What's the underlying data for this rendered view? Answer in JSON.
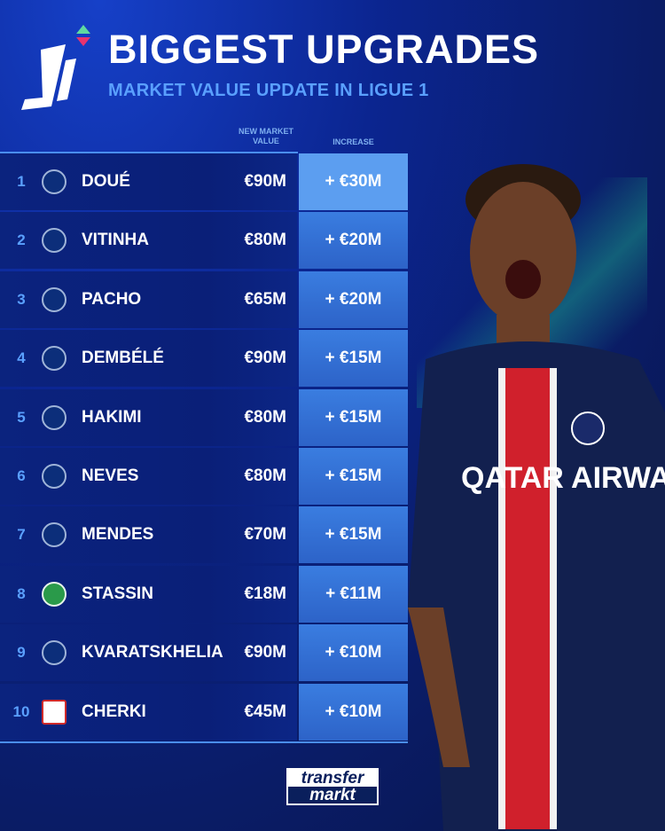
{
  "header": {
    "title": "BIGGEST UPGRADES",
    "subtitle": "MARKET VALUE UPDATE IN LIGUE 1",
    "logo": "Ligue 1 logo"
  },
  "columns": {
    "market_value": "NEW MARKET VALUE",
    "increase": "INCREASE"
  },
  "colors": {
    "accent": "#5aa0ff",
    "background": "#0a1f78",
    "increase_cell": "#3a7de0",
    "highlight": "#5c9ef0"
  },
  "rows": [
    {
      "rank": "1",
      "club": "psg-crest",
      "name": "DOUÉ",
      "value": "€90M",
      "increase": "+ €30M"
    },
    {
      "rank": "2",
      "club": "psg-crest",
      "name": "VITINHA",
      "value": "€80M",
      "increase": "+ €20M"
    },
    {
      "rank": "3",
      "club": "psg-crest",
      "name": "PACHO",
      "value": "€65M",
      "increase": "+ €20M"
    },
    {
      "rank": "4",
      "club": "psg-crest",
      "name": "DEMBÉLÉ",
      "value": "€90M",
      "increase": "+ €15M"
    },
    {
      "rank": "5",
      "club": "psg-crest",
      "name": "HAKIMI",
      "value": "€80M",
      "increase": "+ €15M"
    },
    {
      "rank": "6",
      "club": "psg-crest",
      "name": "NEVES",
      "value": "€80M",
      "increase": "+ €15M"
    },
    {
      "rank": "7",
      "club": "psg-crest",
      "name": "MENDES",
      "value": "€70M",
      "increase": "+ €15M"
    },
    {
      "rank": "8",
      "club": "saint-etienne-crest",
      "name": "STASSIN",
      "value": "€18M",
      "increase": "+ €11M"
    },
    {
      "rank": "9",
      "club": "psg-crest",
      "name": "KVARATSKHELIA",
      "value": "€90M",
      "increase": "+ €10M"
    },
    {
      "rank": "10",
      "club": "lyon-crest",
      "name": "CHERKI",
      "value": "€45M",
      "increase": "+ €10M"
    }
  ],
  "footer": {
    "brand_line1": "transfer",
    "brand_line2": "markt"
  },
  "player_photo": {
    "jersey_text": "QATAR AIRWAYS"
  }
}
